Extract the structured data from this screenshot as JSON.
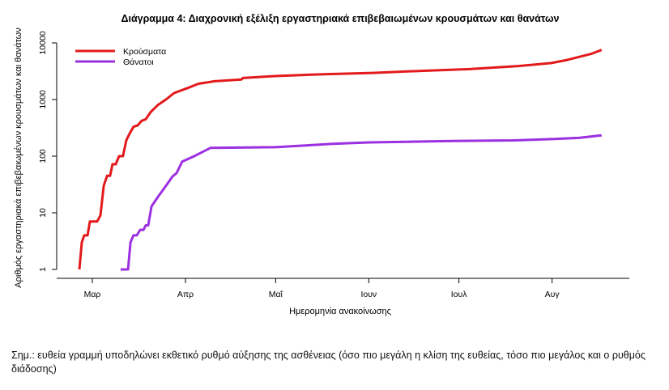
{
  "chart_data": {
    "type": "line",
    "title": "Διάγραμμα 4: Διαχρονική εξέλιξη εργαστηριακά επιβεβαιωμένων κρουσμάτων και θανάτων",
    "xlabel": "Ημερομηνία ανακοίνωσης",
    "ylabel": "Αριθμός εργαστηριακά επιβεβαιωμένων κρουσμάτων και θανάτων",
    "x_unit": "days since 1 Mar",
    "y_scale": "log10",
    "ylim": [
      1,
      10000
    ],
    "yticks": [
      1,
      10,
      100,
      1000,
      10000
    ],
    "ytick_labels": [
      "1",
      "10",
      "100",
      "1000",
      "10000"
    ],
    "xticks": [
      0,
      31,
      61,
      92,
      122,
      153
    ],
    "xtick_labels": [
      "Μαρ",
      "Απρ",
      "Μαΐ",
      "Ιουν",
      "Ιουλ",
      "Αυγ"
    ],
    "xlim": [
      -12,
      178
    ],
    "legend_position": "top-left",
    "grid": false,
    "series": [
      {
        "name": "Κρούσματα",
        "color": "#e31a1c",
        "points": [
          [
            -4.3,
            1
          ],
          [
            -3.5,
            3
          ],
          [
            -2.7,
            4
          ],
          [
            -1.6,
            4
          ],
          [
            -0.8,
            7
          ],
          [
            1.6,
            7
          ],
          [
            2.7,
            9
          ],
          [
            3.8,
            30
          ],
          [
            4.9,
            45
          ],
          [
            5.9,
            45
          ],
          [
            6.7,
            72
          ],
          [
            7.8,
            72
          ],
          [
            8.9,
            100
          ],
          [
            10.2,
            100
          ],
          [
            11.3,
            190
          ],
          [
            12.4,
            250
          ],
          [
            13.7,
            330
          ],
          [
            15.1,
            350
          ],
          [
            16.4,
            420
          ],
          [
            17.8,
            450
          ],
          [
            19.4,
            600
          ],
          [
            21.8,
            800
          ],
          [
            24.5,
            1000
          ],
          [
            27.2,
            1300
          ],
          [
            31.8,
            1600
          ],
          [
            35.3,
            1900
          ],
          [
            40.7,
            2100
          ],
          [
            49.6,
            2250
          ],
          [
            50.1,
            2400
          ],
          [
            60.9,
            2600
          ],
          [
            77.1,
            2800
          ],
          [
            93.3,
            2950
          ],
          [
            109.4,
            3200
          ],
          [
            125.6,
            3450
          ],
          [
            141.8,
            3900
          ],
          [
            152.6,
            4400
          ],
          [
            158,
            5000
          ],
          [
            166,
            6400
          ],
          [
            169.5,
            7500
          ]
        ]
      },
      {
        "name": "Θάνατοι",
        "color": "#9b30e0",
        "points": [
          [
            9.4,
            1
          ],
          [
            11.9,
            1
          ],
          [
            12.7,
            3
          ],
          [
            13.7,
            4
          ],
          [
            14.8,
            4
          ],
          [
            15.9,
            5
          ],
          [
            17,
            5
          ],
          [
            17.8,
            6
          ],
          [
            18.6,
            6
          ],
          [
            19.7,
            13
          ],
          [
            21.8,
            19
          ],
          [
            24.5,
            30
          ],
          [
            26.7,
            44
          ],
          [
            28,
            50
          ],
          [
            29.9,
            80
          ],
          [
            33.9,
            100
          ],
          [
            39.3,
            140
          ],
          [
            61,
            144
          ],
          [
            80,
            165
          ],
          [
            92,
            175
          ],
          [
            120,
            185
          ],
          [
            140,
            190
          ],
          [
            153,
            200
          ],
          [
            162,
            210
          ],
          [
            169.5,
            234
          ]
        ]
      }
    ]
  },
  "note": "Σημ.: ευθεία γραμμή υποδηλώνει εκθετικό ρυθμό αύξησης της ασθένειας (όσο πιο μεγάλη η κλίση της ευθείας, τόσο πιο μεγάλος και ο ρυθμός διάδοσης)"
}
